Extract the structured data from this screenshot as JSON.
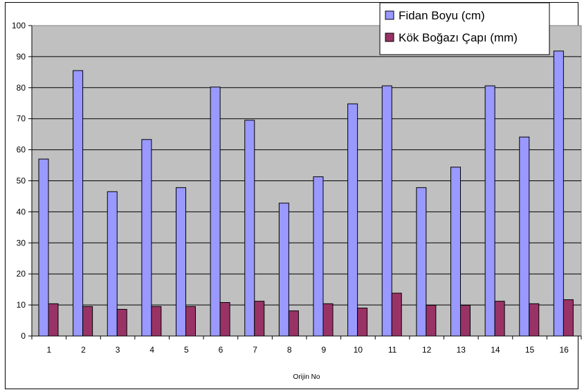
{
  "chart_data": {
    "type": "bar",
    "title": "",
    "xlabel": "Orijin No",
    "ylabel": "",
    "ylim": [
      0,
      100
    ],
    "y_ticks": [
      0,
      10,
      20,
      30,
      40,
      50,
      60,
      70,
      80,
      90,
      100
    ],
    "grid": true,
    "legend_position": "top-right",
    "categories": [
      "1",
      "2",
      "3",
      "4",
      "5",
      "6",
      "7",
      "8",
      "9",
      "10",
      "11",
      "12",
      "13",
      "14",
      "15",
      "16"
    ],
    "series": [
      {
        "name": "Fidan Boyu (cm)",
        "color": "#9999ff",
        "values": [
          57,
          85.5,
          46.5,
          63.3,
          47.8,
          80.2,
          69.5,
          42.8,
          51.3,
          74.8,
          80.6,
          47.8,
          54.4,
          80.6,
          64.1,
          91.8
        ]
      },
      {
        "name": "Kök Boğazı Çapı (mm)",
        "color": "#993366",
        "values": [
          10.4,
          9.5,
          8.6,
          9.5,
          9.5,
          10.8,
          11.2,
          8.1,
          10.4,
          9.0,
          13.8,
          9.9,
          9.9,
          11.2,
          10.4,
          11.7
        ]
      }
    ],
    "plot_background": "#c0c0c0"
  }
}
